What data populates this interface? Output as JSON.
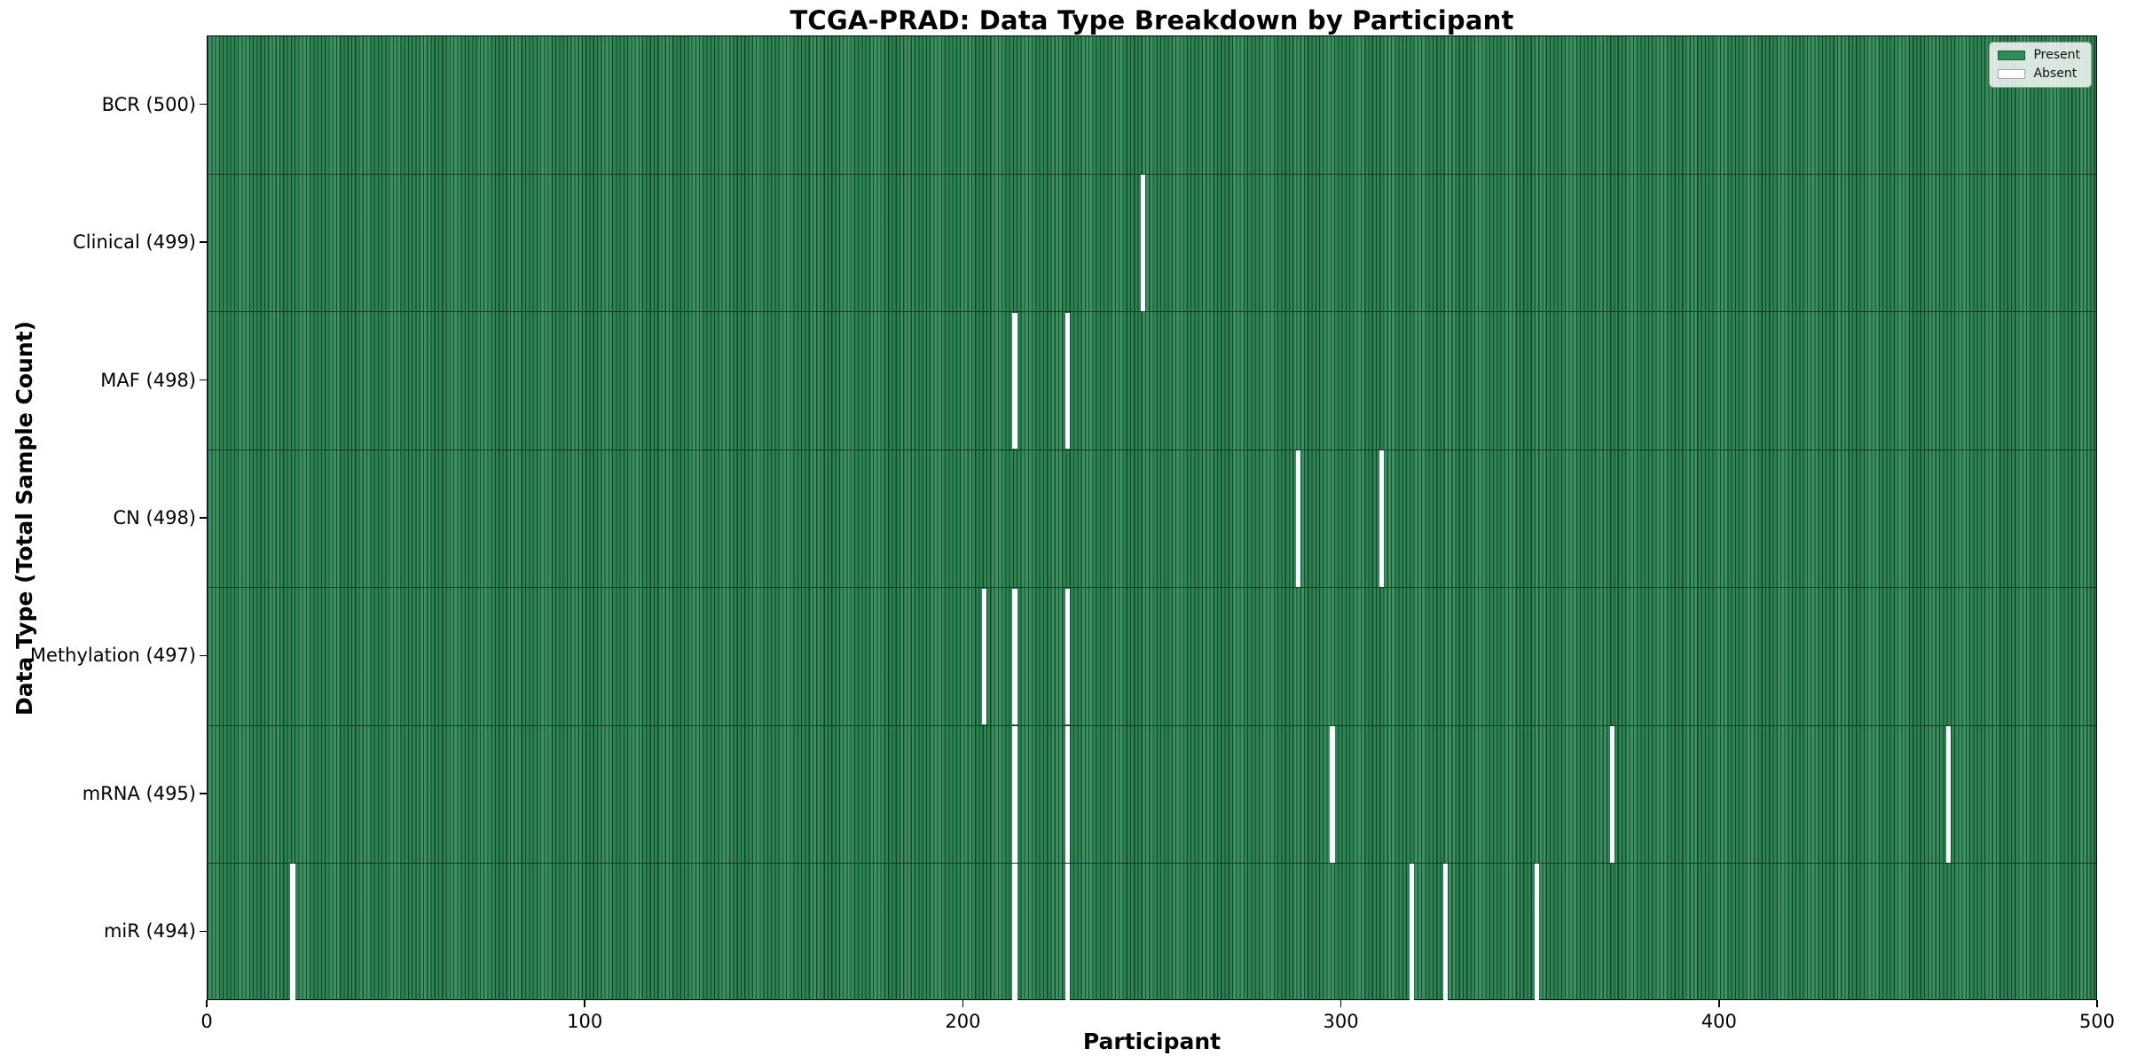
{
  "title": "TCGA-PRAD: Data Type Breakdown by Participant",
  "xlabel": "Participant",
  "ylabel": "Data Type (Total Sample Count)",
  "legend": {
    "present_label": "Present",
    "absent_label": "Absent"
  },
  "colors": {
    "present": "#2e8b57",
    "absent": "#ffffff"
  },
  "chart_data": {
    "type": "heatmap",
    "title": "TCGA-PRAD: Data Type Breakdown by Participant",
    "xlabel": "Participant",
    "ylabel": "Data Type (Total Sample Count)",
    "x_range": [
      0,
      500
    ],
    "x_ticks": [
      0,
      100,
      200,
      300,
      400,
      500
    ],
    "grid": false,
    "legend_position": "upper right",
    "legend": [
      {
        "label": "Present",
        "color": "#2e8b57"
      },
      {
        "label": "Absent",
        "color": "#ffffff"
      }
    ],
    "rows": [
      {
        "name": "BCR",
        "tick_label": "BCR (500)",
        "total_samples": 500,
        "absent_participants": []
      },
      {
        "name": "Clinical",
        "tick_label": "Clinical (499)",
        "total_samples": 499,
        "absent_participants": [
          247
        ]
      },
      {
        "name": "MAF",
        "tick_label": "MAF (498)",
        "total_samples": 498,
        "absent_participants": [
          213,
          227
        ]
      },
      {
        "name": "CN",
        "tick_label": "CN (498)",
        "total_samples": 498,
        "absent_participants": [
          288,
          310
        ]
      },
      {
        "name": "Methylation",
        "tick_label": "Methylation (497)",
        "total_samples": 497,
        "absent_participants": [
          205,
          213,
          227
        ]
      },
      {
        "name": "mRNA",
        "tick_label": "mRNA (495)",
        "total_samples": 495,
        "absent_participants": [
          213,
          227,
          297,
          371,
          460
        ]
      },
      {
        "name": "miR",
        "tick_label": "miR (494)",
        "total_samples": 494,
        "absent_participants": [
          22,
          213,
          227,
          318,
          327,
          351
        ]
      }
    ]
  }
}
